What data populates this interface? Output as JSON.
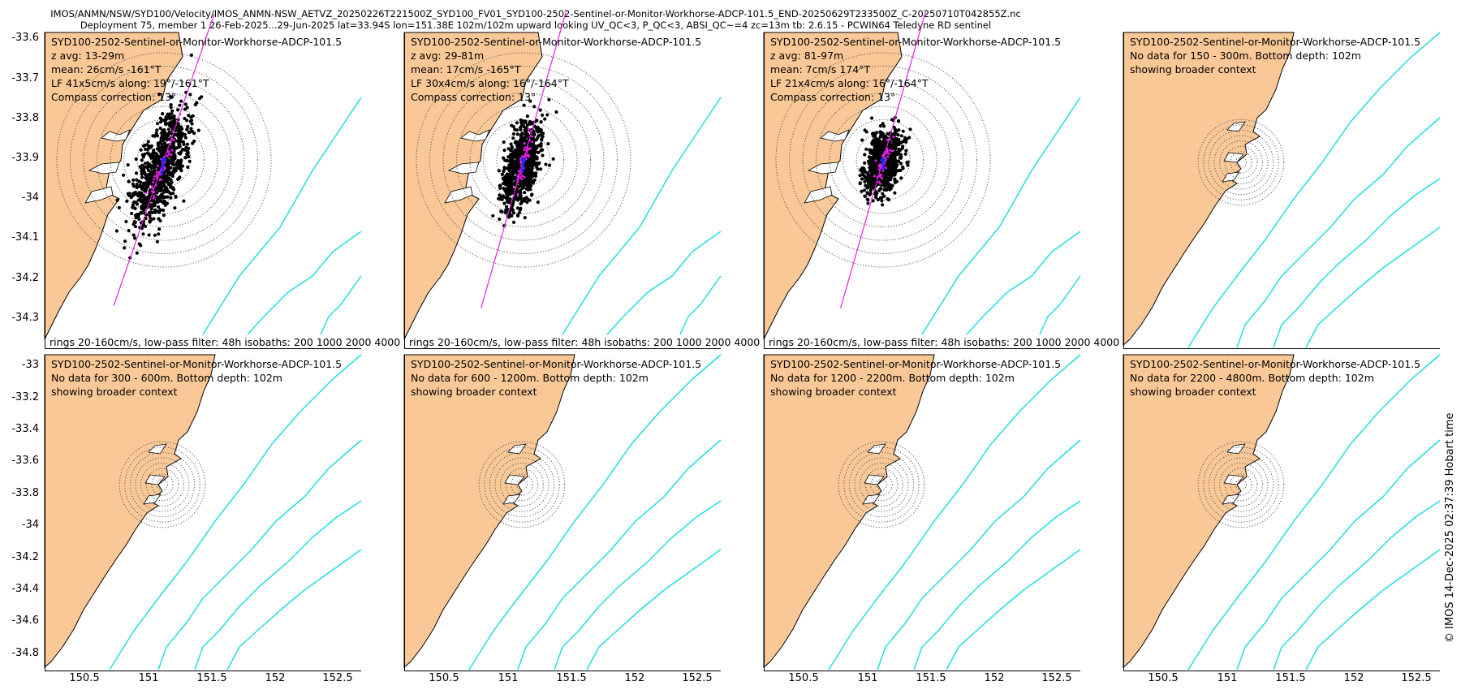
{
  "header": {
    "line1": "IMOS/ANMN/NSW/SYD100/Velocity/IMOS_ANMN-NSW_AETVZ_20250226T221500Z_SYD100_FV01_SYD100-2502-Sentinel-or-Monitor-Workhorse-ADCP-101.5_END-20250629T233500Z_C-20250710T042855Z.nc",
    "line2": "Deployment 75, member 1 26-Feb-2025...29-Jun-2025 lat=33.94S lon=151.38E 102m/102m upward looking UV_QC<3, P_QC<3, ABSI_QC~=4 zc=13m tb: 2.6.15 - PCWIN64 Teledyne RD sentinel"
  },
  "colors": {
    "land": "#f9c896",
    "isobath": "#22dede",
    "scatter": "#000000",
    "axis_line": "#e81ee8",
    "mean_arrow": "#1f2bff"
  },
  "axes": {
    "top_yticks": [
      "-33.6",
      "-33.7",
      "-33.8",
      "-33.9",
      "-34",
      "-34.1",
      "-34.2",
      "-34.3"
    ],
    "bottom_yticks": [
      "-33",
      "-33.2",
      "-33.4",
      "-33.6",
      "-33.8",
      "-34",
      "-34.2",
      "-34.4",
      "-34.6",
      "-34.8"
    ],
    "xticks": [
      "150.5",
      "151",
      "151.5",
      "152",
      "152.5"
    ]
  },
  "footer_text": "rings 20-160cm/s, low-pass filter: 48h isobaths: 200 1000 2000 4000",
  "panels": [
    {
      "line1": "SYD100-2502-Sentinel-or-Monitor-Workhorse-ADCP-101.5",
      "line2": "z avg: 13-29m",
      "line3": "mean: 26cm/s -161°T",
      "line4": "LF 41x5cm/s along: 19°/-161°T",
      "line5": "Compass correction: 13°"
    },
    {
      "line1": "SYD100-2502-Sentinel-or-Monitor-Workhorse-ADCP-101.5",
      "line2": "z avg: 29-81m",
      "line3": "mean: 17cm/s -165°T",
      "line4": "LF 30x4cm/s along: 16°/-164°T",
      "line5": "Compass correction: 13°"
    },
    {
      "line1": "SYD100-2502-Sentinel-or-Monitor-Workhorse-ADCP-101.5",
      "line2": "z avg: 81-97m",
      "line3": "mean: 7cm/s 174°T",
      "line4": "LF 21x4cm/s along: 16°/-164°T",
      "line5": "Compass correction: 13°"
    },
    {
      "line1": "SYD100-2502-Sentinel-or-Monitor-Workhorse-ADCP-101.5",
      "line2": "No data for 150 - 300m. Bottom depth: 102m",
      "line3": "showing broader context"
    },
    {
      "line1": "SYD100-2502-Sentinel-or-Monitor-Workhorse-ADCP-101.5",
      "line2": "No data for 300 - 600m. Bottom depth: 102m",
      "line3": "showing broader context"
    },
    {
      "line1": "SYD100-2502-Sentinel-or-Monitor-Workhorse-ADCP-101.5",
      "line2": "No data for 600 - 1200m. Bottom depth: 102m",
      "line3": "showing broader context"
    },
    {
      "line1": "SYD100-2502-Sentinel-or-Monitor-Workhorse-ADCP-101.5",
      "line2": "No data for 1200 - 2200m. Bottom depth: 102m",
      "line3": "showing broader context"
    },
    {
      "line1": "SYD100-2502-Sentinel-or-Monitor-Workhorse-ADCP-101.5",
      "line2": "No data for 2200 - 4800m. Bottom depth: 102m",
      "line3": "showing broader context"
    }
  ],
  "side_text": "© IMOS 14-Dec-2025 02:37:39 Hobart time",
  "chart_data": [
    {
      "type": "scatter",
      "panel": 1,
      "depth_range": "13-29m",
      "rings_cm_s": [
        20,
        40,
        60,
        80,
        100,
        120,
        140,
        160
      ],
      "mean_speed_cm_s": 26,
      "mean_dir_degT": -161,
      "major_axis_cm_s": 41,
      "minor_axis_cm_s": 5,
      "along_deg": 19,
      "along_degT": -161,
      "xlim": [
        150.2,
        152.6
      ],
      "ylim": [
        -34.38,
        -33.58
      ]
    },
    {
      "type": "scatter",
      "panel": 2,
      "depth_range": "29-81m",
      "rings_cm_s": [
        20,
        40,
        60,
        80,
        100,
        120,
        140,
        160
      ],
      "mean_speed_cm_s": 17,
      "mean_dir_degT": -165,
      "major_axis_cm_s": 30,
      "minor_axis_cm_s": 4,
      "along_deg": 16,
      "along_degT": -164,
      "xlim": [
        150.2,
        152.6
      ],
      "ylim": [
        -34.38,
        -33.58
      ]
    },
    {
      "type": "scatter",
      "panel": 3,
      "depth_range": "81-97m",
      "rings_cm_s": [
        20,
        40,
        60,
        80,
        100,
        120,
        140,
        160
      ],
      "mean_speed_cm_s": 7,
      "mean_dir_degT": 174,
      "major_axis_cm_s": 21,
      "minor_axis_cm_s": 4,
      "along_deg": 16,
      "along_degT": -164,
      "xlim": [
        150.2,
        152.6
      ],
      "ylim": [
        -34.38,
        -33.58
      ]
    },
    {
      "type": "scatter",
      "panel": 4,
      "depth_range": "150-300m",
      "has_data": false,
      "xlim": [
        150.2,
        152.6
      ],
      "ylim": [
        -34.95,
        -32.95
      ]
    },
    {
      "type": "scatter",
      "panel": 5,
      "depth_range": "300-600m",
      "has_data": false,
      "xlim": [
        150.2,
        152.6
      ],
      "ylim": [
        -34.95,
        -32.95
      ]
    },
    {
      "type": "scatter",
      "panel": 6,
      "depth_range": "600-1200m",
      "has_data": false,
      "xlim": [
        150.2,
        152.6
      ],
      "ylim": [
        -34.95,
        -32.95
      ]
    },
    {
      "type": "scatter",
      "panel": 7,
      "depth_range": "1200-2200m",
      "has_data": false,
      "xlim": [
        150.2,
        152.6
      ],
      "ylim": [
        -34.95,
        -32.95
      ]
    },
    {
      "type": "scatter",
      "panel": 8,
      "depth_range": "2200-4800m",
      "has_data": false,
      "xlim": [
        150.2,
        152.6
      ],
      "ylim": [
        -34.95,
        -32.95
      ]
    }
  ]
}
